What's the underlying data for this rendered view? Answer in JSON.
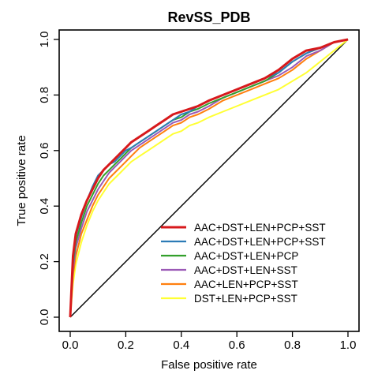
{
  "chart_data": {
    "type": "line",
    "title": "RevSS_PDB",
    "xlabel": "False positive rate",
    "ylabel": "True positive rate",
    "xlim": [
      0,
      1
    ],
    "ylim": [
      0,
      1
    ],
    "x_ticks": [
      "0.0",
      "0.2",
      "0.4",
      "0.6",
      "0.8",
      "1.0"
    ],
    "y_ticks": [
      "0.0",
      "0.2",
      "0.4",
      "0.6",
      "0.8",
      "1.0"
    ],
    "grid": false,
    "legend_position": "bottom-right",
    "diagonal_reference": true,
    "series": [
      {
        "name": "AAC+DST+LEN+PCP+SST",
        "color": "#d7191c",
        "x": [
          0,
          0.01,
          0.02,
          0.04,
          0.06,
          0.08,
          0.1,
          0.12,
          0.14,
          0.16,
          0.18,
          0.2,
          0.22,
          0.25,
          0.28,
          0.31,
          0.34,
          0.37,
          0.4,
          0.43,
          0.46,
          0.5,
          0.55,
          0.6,
          0.65,
          0.7,
          0.75,
          0.8,
          0.85,
          0.9,
          0.95,
          1.0
        ],
        "y": [
          0,
          0.22,
          0.3,
          0.37,
          0.42,
          0.46,
          0.5,
          0.53,
          0.55,
          0.57,
          0.59,
          0.61,
          0.63,
          0.65,
          0.67,
          0.69,
          0.71,
          0.73,
          0.74,
          0.75,
          0.76,
          0.78,
          0.8,
          0.82,
          0.84,
          0.86,
          0.89,
          0.93,
          0.96,
          0.97,
          0.99,
          1.0
        ]
      },
      {
        "name": "AAC+DST+LEN+PCP+SST",
        "color": "#2c7bb6",
        "x": [
          0,
          0.01,
          0.02,
          0.04,
          0.06,
          0.08,
          0.1,
          0.12,
          0.14,
          0.16,
          0.18,
          0.2,
          0.22,
          0.25,
          0.28,
          0.31,
          0.34,
          0.37,
          0.4,
          0.43,
          0.46,
          0.5,
          0.55,
          0.6,
          0.65,
          0.7,
          0.75,
          0.8,
          0.85,
          0.9,
          0.95,
          1.0
        ],
        "y": [
          0,
          0.2,
          0.29,
          0.36,
          0.42,
          0.47,
          0.51,
          0.53,
          0.55,
          0.56,
          0.58,
          0.6,
          0.61,
          0.63,
          0.65,
          0.67,
          0.69,
          0.71,
          0.73,
          0.74,
          0.76,
          0.78,
          0.8,
          0.82,
          0.84,
          0.86,
          0.88,
          0.92,
          0.95,
          0.97,
          0.99,
          1.0
        ]
      },
      {
        "name": "AAC+DST+LEN+PCP",
        "color": "#33a02c",
        "x": [
          0,
          0.01,
          0.02,
          0.04,
          0.06,
          0.08,
          0.1,
          0.12,
          0.14,
          0.16,
          0.18,
          0.2,
          0.22,
          0.25,
          0.28,
          0.31,
          0.34,
          0.37,
          0.4,
          0.43,
          0.46,
          0.5,
          0.55,
          0.6,
          0.65,
          0.7,
          0.75,
          0.8,
          0.85,
          0.9,
          0.95,
          1.0
        ],
        "y": [
          0,
          0.19,
          0.27,
          0.34,
          0.4,
          0.44,
          0.48,
          0.51,
          0.53,
          0.55,
          0.57,
          0.59,
          0.61,
          0.63,
          0.65,
          0.67,
          0.69,
          0.71,
          0.72,
          0.74,
          0.75,
          0.77,
          0.79,
          0.81,
          0.83,
          0.85,
          0.88,
          0.92,
          0.95,
          0.97,
          0.99,
          1.0
        ]
      },
      {
        "name": "AAC+DST+LEN+SST",
        "color": "#9b59b6",
        "x": [
          0,
          0.01,
          0.02,
          0.04,
          0.06,
          0.08,
          0.1,
          0.12,
          0.14,
          0.16,
          0.18,
          0.2,
          0.22,
          0.25,
          0.28,
          0.31,
          0.34,
          0.37,
          0.4,
          0.43,
          0.46,
          0.5,
          0.55,
          0.6,
          0.65,
          0.7,
          0.75,
          0.8,
          0.85,
          0.9,
          0.95,
          1.0
        ],
        "y": [
          0,
          0.17,
          0.25,
          0.32,
          0.38,
          0.42,
          0.46,
          0.49,
          0.52,
          0.54,
          0.56,
          0.58,
          0.6,
          0.62,
          0.64,
          0.66,
          0.68,
          0.7,
          0.71,
          0.73,
          0.74,
          0.76,
          0.79,
          0.81,
          0.83,
          0.85,
          0.87,
          0.9,
          0.94,
          0.96,
          0.99,
          1.0
        ]
      },
      {
        "name": "AAC+LEN+PCP+SST",
        "color": "#ff7f0e",
        "x": [
          0,
          0.01,
          0.02,
          0.04,
          0.06,
          0.08,
          0.1,
          0.12,
          0.14,
          0.16,
          0.18,
          0.2,
          0.22,
          0.25,
          0.28,
          0.31,
          0.34,
          0.37,
          0.4,
          0.43,
          0.46,
          0.5,
          0.55,
          0.6,
          0.65,
          0.7,
          0.75,
          0.8,
          0.85,
          0.9,
          0.95,
          1.0
        ],
        "y": [
          0,
          0.15,
          0.22,
          0.3,
          0.35,
          0.4,
          0.44,
          0.47,
          0.5,
          0.52,
          0.54,
          0.56,
          0.58,
          0.61,
          0.63,
          0.65,
          0.67,
          0.69,
          0.7,
          0.72,
          0.73,
          0.75,
          0.78,
          0.8,
          0.82,
          0.84,
          0.86,
          0.89,
          0.93,
          0.96,
          0.99,
          1.0
        ]
      },
      {
        "name": "DST+LEN+PCP+SST",
        "color": "#ffff33",
        "x": [
          0,
          0.01,
          0.02,
          0.04,
          0.06,
          0.08,
          0.1,
          0.12,
          0.14,
          0.16,
          0.18,
          0.2,
          0.22,
          0.25,
          0.28,
          0.31,
          0.34,
          0.37,
          0.4,
          0.43,
          0.46,
          0.5,
          0.55,
          0.6,
          0.65,
          0.7,
          0.75,
          0.8,
          0.85,
          0.9,
          0.95,
          1.0
        ],
        "y": [
          0,
          0.12,
          0.19,
          0.27,
          0.33,
          0.38,
          0.42,
          0.45,
          0.48,
          0.5,
          0.52,
          0.54,
          0.56,
          0.58,
          0.6,
          0.62,
          0.64,
          0.66,
          0.67,
          0.69,
          0.7,
          0.72,
          0.74,
          0.76,
          0.78,
          0.8,
          0.82,
          0.85,
          0.88,
          0.92,
          0.96,
          1.0
        ]
      }
    ]
  }
}
